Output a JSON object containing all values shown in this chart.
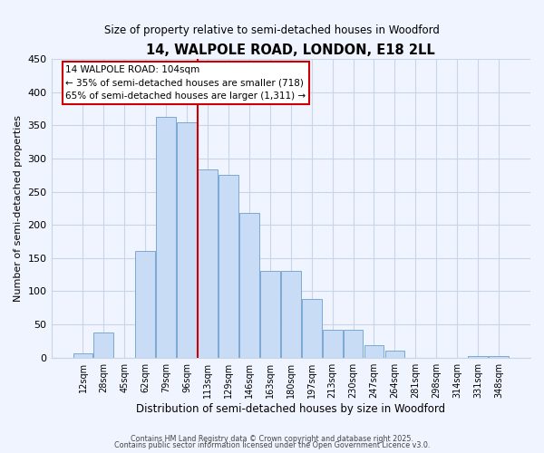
{
  "title_line1": "14, WALPOLE ROAD, LONDON, E18 2LL",
  "title_line2": "Size of property relative to semi-detached houses in Woodford",
  "xlabel": "Distribution of semi-detached houses by size in Woodford",
  "ylabel": "Number of semi-detached properties",
  "bar_labels": [
    "12sqm",
    "28sqm",
    "45sqm",
    "62sqm",
    "79sqm",
    "96sqm",
    "113sqm",
    "129sqm",
    "146sqm",
    "163sqm",
    "180sqm",
    "197sqm",
    "213sqm",
    "230sqm",
    "247sqm",
    "264sqm",
    "281sqm",
    "298sqm",
    "314sqm",
    "331sqm",
    "348sqm"
  ],
  "bar_values": [
    7,
    38,
    0,
    160,
    363,
    355,
    284,
    275,
    218,
    130,
    130,
    88,
    42,
    42,
    19,
    11,
    0,
    0,
    0,
    2,
    3
  ],
  "bar_color": "#c9dcf5",
  "bar_edge_color": "#7aa8d4",
  "vline_x": 5.5,
  "vline_color": "#cc0000",
  "ylim": [
    0,
    450
  ],
  "yticks": [
    0,
    50,
    100,
    150,
    200,
    250,
    300,
    350,
    400,
    450
  ],
  "annotation_title": "14 WALPOLE ROAD: 104sqm",
  "annotation_line1": "← 35% of semi-detached houses are smaller (718)",
  "annotation_line2": "65% of semi-detached houses are larger (1,311) →",
  "footer_line1": "Contains HM Land Registry data © Crown copyright and database right 2025.",
  "footer_line2": "Contains public sector information licensed under the Open Government Licence v3.0.",
  "bg_color": "#f0f4ff",
  "grid_color": "#c8d4e8"
}
